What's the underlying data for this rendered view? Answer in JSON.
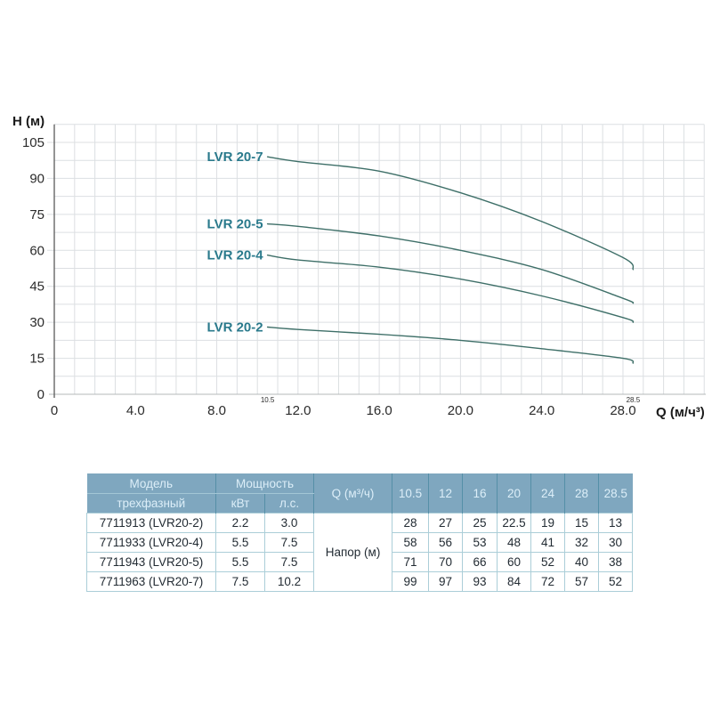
{
  "chart_data": {
    "type": "line",
    "title": "",
    "xlabel": "Q (м/ч³)",
    "ylabel": "H (м)",
    "xlim": [
      0,
      32
    ],
    "ylim": [
      0,
      112.5
    ],
    "grid": true,
    "x_ticks": [
      0,
      4,
      8,
      12,
      16,
      20,
      24,
      28
    ],
    "x_tick_labels": [
      "0",
      "4.0",
      "8.0",
      "12.0",
      "16.0",
      "20.0",
      "24.0",
      "28.0"
    ],
    "x_minor_tick_labels": [
      {
        "value": 10.5,
        "label": "10.5"
      },
      {
        "value": 28.5,
        "label": "28.5"
      }
    ],
    "y_ticks": [
      0,
      15,
      30,
      45,
      60,
      75,
      90,
      105
    ],
    "x": [
      10.5,
      12,
      16,
      20,
      24,
      28,
      28.5
    ],
    "series": [
      {
        "name": "LVR 20-7",
        "values": [
          99,
          97,
          93,
          84,
          72,
          57,
          52
        ]
      },
      {
        "name": "LVR 20-5",
        "values": [
          71,
          70,
          66,
          60,
          52,
          40,
          38
        ]
      },
      {
        "name": "LVR 20-4",
        "values": [
          58,
          56,
          53,
          48,
          41,
          32,
          30
        ]
      },
      {
        "name": "LVR 20-2",
        "values": [
          28,
          27,
          25,
          22.5,
          19,
          15,
          13
        ]
      }
    ],
    "legend_position": "labels-left-of-curves",
    "colors": {
      "curve": "#3e6f68",
      "curve_label": "#2a7a8c",
      "grid": "#dcdfe2",
      "axis_y": "#5a5a5a",
      "axis_x": "#b4b8ba",
      "tick_text": "#2b2b2b"
    }
  },
  "table": {
    "header": {
      "model": "Модель",
      "model_sub": "трехфазный",
      "power": "Мощность",
      "power_kw": "кВт",
      "power_hp": "л.с.",
      "q_label": "Q (м³/ч)",
      "flow_columns": [
        "10.5",
        "12",
        "16",
        "20",
        "24",
        "28",
        "28.5"
      ]
    },
    "body_label": "Напор (м)",
    "rows": [
      {
        "model": "7711913 (LVR20-2)",
        "kw": "2.2",
        "hp": "3.0",
        "head": [
          "28",
          "27",
          "25",
          "22.5",
          "19",
          "15",
          "13"
        ]
      },
      {
        "model": "7711933 (LVR20-4)",
        "kw": "5.5",
        "hp": "7.5",
        "head": [
          "58",
          "56",
          "53",
          "48",
          "41",
          "32",
          "30"
        ]
      },
      {
        "model": "7711943 (LVR20-5)",
        "kw": "5.5",
        "hp": "7.5",
        "head": [
          "71",
          "70",
          "66",
          "60",
          "52",
          "40",
          "38"
        ]
      },
      {
        "model": "7711963 (LVR20-7)",
        "kw": "7.5",
        "hp": "10.2",
        "head": [
          "99",
          "97",
          "93",
          "84",
          "72",
          "57",
          "52"
        ]
      }
    ],
    "colors": {
      "header_bg": "#7fa7bf",
      "header_text": "#dceef8",
      "header_separator": "#558fa7",
      "body_border": "#abced8",
      "body_text": "#222b33"
    }
  }
}
